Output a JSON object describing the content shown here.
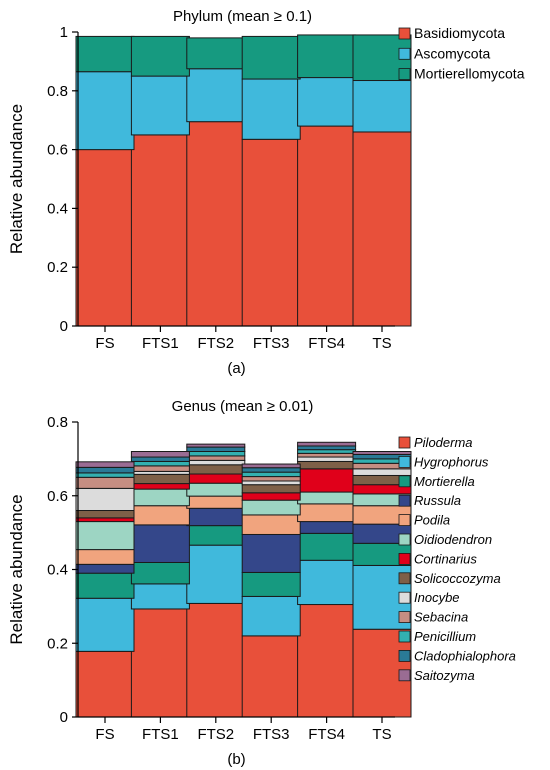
{
  "chart_data": [
    {
      "type": "bar",
      "stacked": true,
      "title": "Phylum (mean ≥ 0.1)",
      "ylabel": "Relative abundance",
      "xlabel": "",
      "ylim": [
        0,
        1
      ],
      "yticks": [
        0,
        0.2,
        0.4,
        0.6,
        0.8,
        1
      ],
      "ytick_labels": [
        "0",
        "0.2",
        "0.4",
        "0.6",
        "0.8",
        "1"
      ],
      "categories": [
        "FS",
        "FTS1",
        "FTS2",
        "FTS3",
        "FTS4",
        "TS"
      ],
      "caption": "(a)",
      "legend_position": "right",
      "series": [
        {
          "name": "Basidiomycota",
          "color": "#e8503a",
          "values": [
            0.6,
            0.65,
            0.695,
            0.635,
            0.68,
            0.66
          ]
        },
        {
          "name": "Ascomycota",
          "color": "#40b9dc",
          "values": [
            0.265,
            0.2,
            0.18,
            0.205,
            0.165,
            0.175
          ]
        },
        {
          "name": "Mortierellomycota",
          "color": "#169a80",
          "values": [
            0.12,
            0.135,
            0.105,
            0.145,
            0.145,
            0.155
          ]
        }
      ]
    },
    {
      "type": "bar",
      "stacked": true,
      "title": "Genus (mean ≥ 0.01)",
      "ylabel": "Relative abundance",
      "xlabel": "",
      "ylim": [
        0,
        0.8
      ],
      "yticks": [
        0,
        0.2,
        0.4,
        0.6,
        0.8
      ],
      "ytick_labels": [
        "0",
        "0.2",
        "0.4",
        "0.6",
        "0.8"
      ],
      "categories": [
        "FS",
        "FTS1",
        "FTS2",
        "FTS3",
        "FTS4",
        "TS"
      ],
      "caption": "(b)",
      "legend_position": "right",
      "series": [
        {
          "name": "Piloderma",
          "color": "#e8503a",
          "values": [
            0.178,
            0.293,
            0.308,
            0.22,
            0.305,
            0.238
          ]
        },
        {
          "name": "Hygrophorus",
          "color": "#40b9dc",
          "values": [
            0.144,
            0.068,
            0.158,
            0.107,
            0.12,
            0.173
          ]
        },
        {
          "name": "Mortierella",
          "color": "#169a80",
          "values": [
            0.068,
            0.058,
            0.053,
            0.065,
            0.073,
            0.06
          ]
        },
        {
          "name": "Russula",
          "color": "#34478a",
          "values": [
            0.024,
            0.102,
            0.047,
            0.103,
            0.032,
            0.052
          ]
        },
        {
          "name": "Podila",
          "color": "#f1a47e",
          "values": [
            0.04,
            0.052,
            0.033,
            0.053,
            0.048,
            0.05
          ]
        },
        {
          "name": "Oidiodendron",
          "color": "#9dd5c3",
          "values": [
            0.076,
            0.045,
            0.035,
            0.04,
            0.032,
            0.032
          ]
        },
        {
          "name": "Cortinarius",
          "color": "#e0001a",
          "values": [
            0.01,
            0.015,
            0.025,
            0.02,
            0.063,
            0.025
          ]
        },
        {
          "name": "Solicoccozyma",
          "color": "#7e6048",
          "values": [
            0.02,
            0.025,
            0.025,
            0.022,
            0.02,
            0.025
          ]
        },
        {
          "name": "Inocybe",
          "color": "#dcdcdc",
          "values": [
            0.06,
            0.008,
            0.012,
            0.01,
            0.012,
            0.018
          ]
        },
        {
          "name": "Sebacina",
          "color": "#c68e82",
          "values": [
            0.03,
            0.015,
            0.012,
            0.012,
            0.01,
            0.015
          ]
        },
        {
          "name": "Penicillium",
          "color": "#33b0b0",
          "values": [
            0.012,
            0.012,
            0.012,
            0.012,
            0.01,
            0.012
          ]
        },
        {
          "name": "Cladophialophora",
          "color": "#2a7a96",
          "values": [
            0.015,
            0.012,
            0.012,
            0.012,
            0.01,
            0.012
          ]
        },
        {
          "name": "Saitozyma",
          "color": "#9a6c93",
          "values": [
            0.015,
            0.015,
            0.008,
            0.01,
            0.01,
            0.008
          ]
        }
      ]
    }
  ]
}
